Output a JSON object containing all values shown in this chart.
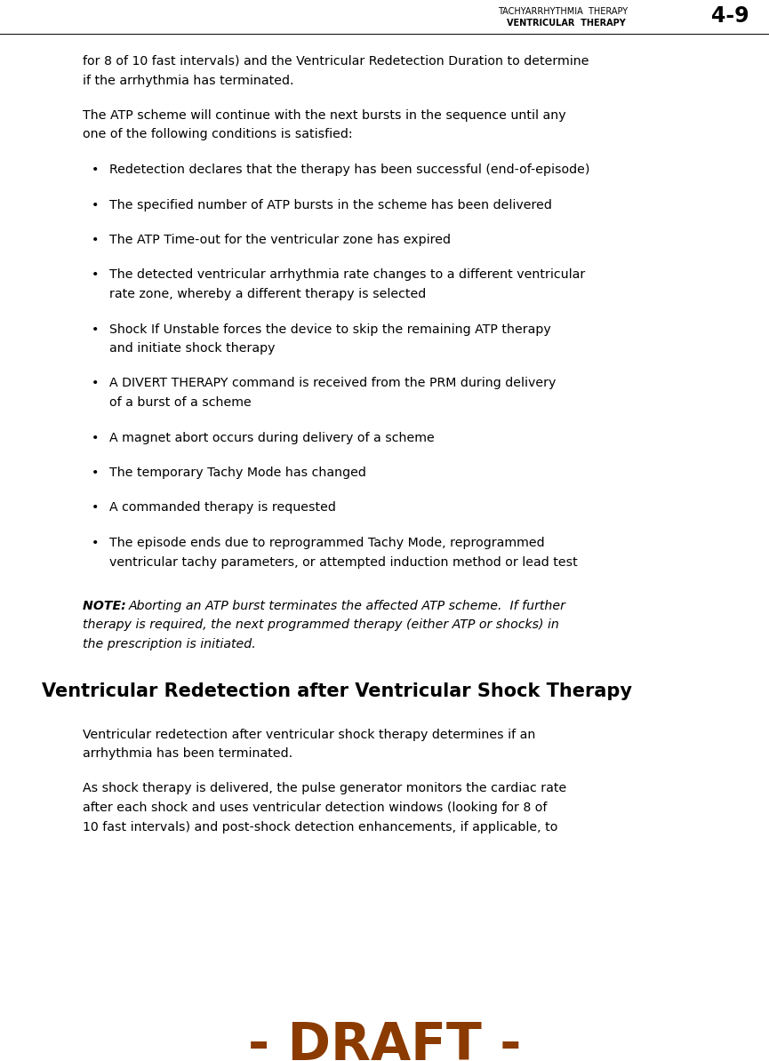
{
  "header_line1": "TACHYARRHYTHMIA  THERAPY",
  "header_line2": "VENTRICULAR  THERAPY",
  "header_page": "4-9",
  "bg_color": "#ffffff",
  "text_color": "#000000",
  "draft_color": "#8B3A00",
  "header_color": "#000000",
  "para1_lines": [
    "for 8 of 10 fast intervals) and the Ventricular Redetection Duration to determine",
    "if the arrhythmia has terminated."
  ],
  "para2_lines": [
    "The ATP scheme will continue with the next bursts in the sequence until any",
    "one of the following conditions is satisfied:"
  ],
  "bullets": [
    [
      "Redetection declares that the therapy has been successful (end-of-episode)"
    ],
    [
      "The specified number of ATP bursts in the scheme has been delivered"
    ],
    [
      "The ATP Time-out for the ventricular zone has expired"
    ],
    [
      "The detected ventricular arrhythmia rate changes to a different ventricular",
      "rate zone, whereby a different therapy is selected"
    ],
    [
      "Shock If Unstable forces the device to skip the remaining ATP therapy",
      "and initiate shock therapy"
    ],
    [
      "A DIVERT THERAPY command is received from the PRM during delivery",
      "of a burst of a scheme"
    ],
    [
      "A magnet abort occurs during delivery of a scheme"
    ],
    [
      "The temporary Tachy Mode has changed"
    ],
    [
      "A commanded therapy is requested"
    ],
    [
      "The episode ends due to reprogrammed Tachy Mode, reprogrammed",
      "ventricular tachy parameters, or attempted induction method or lead test"
    ]
  ],
  "note_label": "NOTE:   ",
  "note_text_lines": [
    "Aborting an ATP burst terminates the affected ATP scheme.  If further",
    "therapy is required, the next programmed therapy (either ATP or shocks) in",
    "the prescription is initiated."
  ],
  "section_heading": "Ventricular Redetection after Ventricular Shock Therapy",
  "section_para1_lines": [
    "Ventricular redetection after ventricular shock therapy determines if an",
    "arrhythmia has been terminated."
  ],
  "section_para2_lines": [
    "As shock therapy is delivered, the pulse generator monitors the cardiac rate",
    "after each shock and uses ventricular detection windows (looking for 8 of",
    "10 fast intervals) and post-shock detection enhancements, if applicable, to"
  ],
  "draft_text": "- DRAFT -",
  "fig_width": 8.65,
  "fig_height": 11.94,
  "dpi": 100
}
